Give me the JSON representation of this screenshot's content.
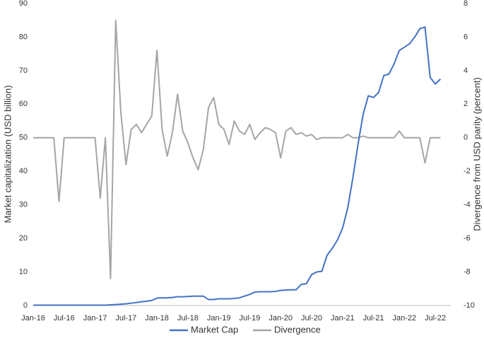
{
  "chart_data": {
    "type": "line",
    "x": [
      "2016-01",
      "2016-02",
      "2016-03",
      "2016-04",
      "2016-05",
      "2016-06",
      "2016-07",
      "2016-08",
      "2016-09",
      "2016-10",
      "2016-11",
      "2016-12",
      "2017-01",
      "2017-02",
      "2017-03",
      "2017-04",
      "2017-05",
      "2017-06",
      "2017-07",
      "2017-08",
      "2017-09",
      "2017-10",
      "2017-11",
      "2017-12",
      "2018-01",
      "2018-02",
      "2018-03",
      "2018-04",
      "2018-05",
      "2018-06",
      "2018-07",
      "2018-08",
      "2018-09",
      "2018-10",
      "2018-11",
      "2018-12",
      "2019-01",
      "2019-02",
      "2019-03",
      "2019-04",
      "2019-05",
      "2019-06",
      "2019-07",
      "2019-08",
      "2019-09",
      "2019-10",
      "2019-11",
      "2019-12",
      "2020-01",
      "2020-02",
      "2020-03",
      "2020-04",
      "2020-05",
      "2020-06",
      "2020-07",
      "2020-08",
      "2020-09",
      "2020-10",
      "2020-11",
      "2020-12",
      "2021-01",
      "2021-02",
      "2021-03",
      "2021-04",
      "2021-05",
      "2021-06",
      "2021-07",
      "2021-08",
      "2021-09",
      "2021-10",
      "2021-11",
      "2021-12",
      "2022-01",
      "2022-02",
      "2022-03",
      "2022-04",
      "2022-05",
      "2022-06",
      "2022-07",
      "2022-08"
    ],
    "series": [
      {
        "name": "Divergence",
        "color": "#a5a5a5",
        "axis": "y2",
        "values": [
          0,
          0,
          0,
          0,
          0,
          -3.8,
          0,
          0,
          0,
          0,
          0,
          0,
          0,
          -3.6,
          0,
          -8.4,
          7,
          1.5,
          -1.6,
          0.5,
          0.8,
          0.3,
          0.8,
          1.3,
          5.2,
          0.5,
          -1.1,
          0.3,
          2.6,
          0.4,
          -0.3,
          -1.2,
          -1.9,
          -0.7,
          1.8,
          2.4,
          0.8,
          0.5,
          -0.4,
          1.0,
          0.4,
          0.2,
          0.8,
          -0.1,
          0.3,
          0.6,
          0.5,
          0.3,
          -1.2,
          0.4,
          0.6,
          0.2,
          0.3,
          0.1,
          0.2,
          -0.1,
          0,
          0,
          0,
          0,
          0,
          0.2,
          0,
          0,
          0.1,
          0,
          0,
          0,
          0,
          0,
          0,
          0.4,
          0,
          0,
          0,
          0,
          -1.5,
          0,
          0,
          0
        ]
      },
      {
        "name": "Market Cap",
        "color": "#4472c4",
        "values": [
          0.1,
          0.1,
          0.1,
          0.1,
          0.1,
          0.1,
          0.1,
          0.1,
          0.1,
          0.1,
          0.1,
          0.1,
          0.1,
          0.1,
          0.1,
          0.2,
          0.3,
          0.4,
          0.5,
          0.7,
          0.9,
          1.1,
          1.3,
          1.5,
          2.2,
          2.3,
          2.3,
          2.4,
          2.6,
          2.6,
          2.7,
          2.8,
          2.8,
          2.8,
          1.8,
          1.8,
          2.0,
          2.0,
          2.0,
          2.1,
          2.3,
          2.8,
          3.3,
          4.0,
          4.1,
          4.1,
          4.1,
          4.2,
          4.5,
          4.6,
          4.7,
          4.7,
          6.3,
          6.5,
          9.2,
          10,
          10.2,
          15,
          17,
          19.5,
          23,
          29,
          38,
          48,
          57,
          62.5,
          62,
          63.5,
          68.5,
          69,
          72,
          76,
          77,
          78,
          80,
          82.5,
          83,
          68,
          66,
          67.5
        ]
      }
    ],
    "xlim": [
      "2016-01",
      "2022-10"
    ],
    "xticks": [
      {
        "value": "2016-01",
        "label": "Jan-16"
      },
      {
        "value": "2016-07",
        "label": "Jul-16"
      },
      {
        "value": "2017-01",
        "label": "Jan-17"
      },
      {
        "value": "2017-07",
        "label": "Jul-17"
      },
      {
        "value": "2018-01",
        "label": "Jan-18"
      },
      {
        "value": "2018-07",
        "label": "Jul-18"
      },
      {
        "value": "2019-01",
        "label": "Jan-19"
      },
      {
        "value": "2019-07",
        "label": "Jul-19"
      },
      {
        "value": "2020-01",
        "label": "Jan-20"
      },
      {
        "value": "2020-07",
        "label": "Jul-20"
      },
      {
        "value": "2021-01",
        "label": "Jan-21"
      },
      {
        "value": "2021-07",
        "label": "Jul-21"
      },
      {
        "value": "2022-01",
        "label": "Jan-22"
      },
      {
        "value": "2022-07",
        "label": "Jul-22"
      }
    ],
    "ylim": [
      0,
      90
    ],
    "yticks": [
      0,
      10,
      20,
      30,
      40,
      50,
      60,
      70,
      80,
      90
    ],
    "y2lim": [
      -10,
      8
    ],
    "y2ticks": [
      -10,
      -8,
      -6,
      -4,
      -2,
      0,
      2,
      4,
      6,
      8
    ],
    "ylabel": "Market capitalization (USD billion)",
    "y2label": "Divergence from USD parity (percent)",
    "legend": "bottom"
  }
}
